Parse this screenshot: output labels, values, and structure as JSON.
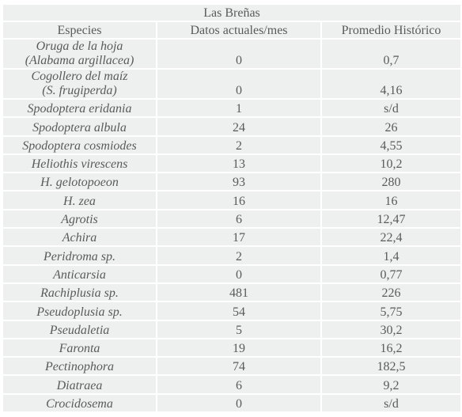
{
  "table": {
    "title": "Las Breñas",
    "headers": [
      "Especies",
      "Datos actuales/mes",
      "Promedio Histórico"
    ],
    "rows": [
      [
        [
          "Oruga de la hoja",
          "(Alabama argillacea)"
        ],
        "0",
        "0,7"
      ],
      [
        [
          "Cogollero del  maíz",
          "(S. frugiperda)"
        ],
        "0",
        "4,16"
      ],
      [
        "Spodoptera  eridania",
        "1",
        "s/d"
      ],
      [
        "Spodoptera albula",
        "24",
        "26"
      ],
      [
        "Spodoptera cosmiodes",
        "2",
        "4,55"
      ],
      [
        "Heliothis virescens",
        "13",
        "10,2"
      ],
      [
        "H. gelotopoeon",
        "93",
        "280"
      ],
      [
        "H. zea",
        "16",
        "16"
      ],
      [
        "Agrotis",
        "6",
        "12,47"
      ],
      [
        "Achira",
        "17",
        "22,4"
      ],
      [
        "Peridroma sp.",
        "2",
        "1,4"
      ],
      [
        "Anticarsia",
        "0",
        "0,77"
      ],
      [
        "Rachiplusia sp.",
        "481",
        "226"
      ],
      [
        "Pseudoplusia sp.",
        "54",
        "5,75"
      ],
      [
        "Pseudaletia",
        "5",
        "30,2"
      ],
      [
        "Faronta",
        "19",
        "16,2"
      ],
      [
        "Pectinophora",
        "74",
        "182,5"
      ],
      [
        "Diatraea",
        "6",
        "9,2"
      ],
      [
        "Crocidosema",
        "0",
        "s/d"
      ]
    ]
  }
}
